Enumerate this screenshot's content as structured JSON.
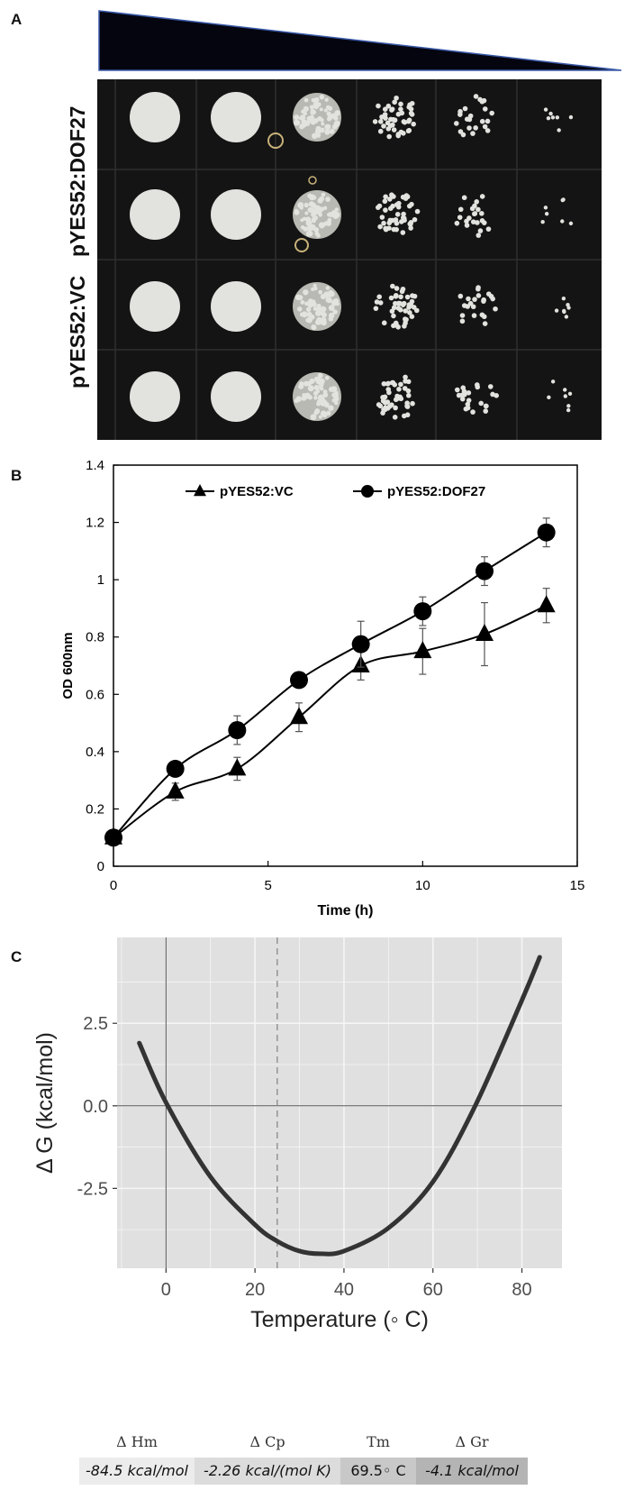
{
  "panels": {
    "a_letter": "A",
    "b_letter": "B",
    "c_letter": "C"
  },
  "panel_a": {
    "row_labels": [
      "pYES52:DOF27",
      "pYES52:VC"
    ],
    "colors": {
      "plate": "#141414",
      "grid_line": "#2e2e2e",
      "colony": "#e2e2de",
      "wedge": "#050510",
      "wedge_edge": "#3a5aa8"
    },
    "spot_rows": [
      [
        "full",
        "full",
        "dense",
        "speckled",
        "sparse",
        "few"
      ],
      [
        "full",
        "full",
        "dense",
        "speckled",
        "sparse",
        "few"
      ],
      [
        "full",
        "full",
        "dense",
        "speckled",
        "sparse",
        "few"
      ],
      [
        "full",
        "full",
        "dense",
        "speckled",
        "sparse",
        "few"
      ]
    ]
  },
  "chart_data": [
    {
      "type": "line",
      "panel": "B",
      "xlabel": "Time (h)",
      "ylabel": "OD 600nm",
      "xlim": [
        0,
        15
      ],
      "ylim": [
        0,
        1.4
      ],
      "xticks": [
        "0",
        "5",
        "10",
        "15"
      ],
      "yticks": [
        "0",
        "0.2",
        "0.4",
        "0.6",
        "0.8",
        "1",
        "1.2",
        "1.4"
      ],
      "legend_placement": "top",
      "grid": false,
      "x": [
        0,
        2,
        4,
        6,
        8,
        10,
        12,
        14
      ],
      "series": [
        {
          "name": "pYES52:VC",
          "marker": "triangle",
          "values": [
            0.1,
            0.26,
            0.34,
            0.52,
            0.7,
            0.75,
            0.81,
            0.91
          ],
          "errors": [
            0.02,
            0.03,
            0.04,
            0.05,
            0.05,
            0.08,
            0.11,
            0.06
          ]
        },
        {
          "name": "pYES52:DOF27",
          "marker": "circle",
          "values": [
            0.1,
            0.34,
            0.475,
            0.65,
            0.775,
            0.89,
            1.03,
            1.165
          ],
          "errors": [
            0.02,
            0.02,
            0.05,
            0.02,
            0.08,
            0.05,
            0.05,
            0.05
          ]
        }
      ]
    },
    {
      "type": "line",
      "panel": "C",
      "xlabel": "Temperature (◦ C)",
      "ylabel": "Δ G (kcal/mol)",
      "xlim": [
        -11,
        89
      ],
      "ylim": [
        -4.92,
        5.1
      ],
      "xticks": [
        "0",
        "20",
        "40",
        "60",
        "80"
      ],
      "yticks": [
        "2.5",
        "0.0",
        "-2.5"
      ],
      "grid": true,
      "colors": {
        "background": "#e0e0e0",
        "grid": "#f5f5f5",
        "curve": "#333333",
        "reference_line": "#888888"
      },
      "reference_lines": {
        "vertical_dashed_x": 25,
        "vertical_solid_x": 0,
        "horizontal_solid_y": 0
      },
      "x": [
        -6,
        0,
        10,
        20,
        25,
        30,
        34.5,
        40,
        50,
        60,
        69.5,
        80,
        84
      ],
      "series": [
        {
          "name": "",
          "values": [
            1.9,
            0.1,
            -2.15,
            -3.6,
            -4.1,
            -4.4,
            -4.48,
            -4.4,
            -3.7,
            -2.3,
            0.0,
            3.2,
            4.5
          ]
        }
      ]
    }
  ],
  "parameters": {
    "headers": [
      "Δ Hm",
      "Δ Cp",
      "Tm",
      "Δ Gr"
    ],
    "values": [
      "-84.5 kcal/mol",
      "-2.26 kcal/(mol K)",
      "69.5◦ C",
      "-4.1 kcal/mol"
    ],
    "colors": [
      "#ececec",
      "#dcdcdc",
      "#c8c8c8",
      "#b4b4b4"
    ]
  }
}
